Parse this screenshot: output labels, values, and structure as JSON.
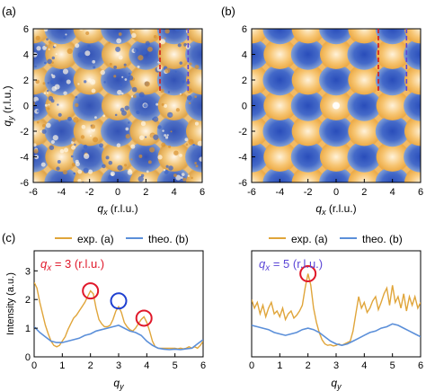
{
  "panels": {
    "a": {
      "tag": "(a)",
      "xlabel_var": "q",
      "xlabel_sub": "x",
      "xlabel_unit": " (r.l.u.)",
      "ylabel_var": "q",
      "ylabel_sub": "y",
      "ylabel_unit": " (r.l.u.)"
    },
    "b": {
      "tag": "(b)",
      "xlabel_var": "q",
      "xlabel_sub": "x",
      "xlabel_unit": " (r.l.u.)"
    },
    "c": {
      "tag": "(c)"
    }
  },
  "annotations": {
    "left_label": "qx = 3 (r.l.u.)",
    "left_label_var": "q",
    "left_label_sub": "x",
    "left_label_rest": " = 3 (r.l.u.)",
    "right_label_var": "q",
    "right_label_sub": "x",
    "right_label_rest": " = 5 (r.l.u.)"
  },
  "legend": {
    "exp_label": "exp. (a)",
    "theo_label": "theo. (b)"
  },
  "colors": {
    "exp": "#e0a53a",
    "theo": "#5b8fd9",
    "map_orange": "#f0b45a",
    "map_blue": "#2f58c4",
    "map_white": "#fff3de",
    "red": "#e0182a",
    "blue_circle": "#1e3fd0",
    "red_dash": "#d21c1c",
    "violet_dash": "#5b46d6"
  },
  "chart_data": [
    {
      "type": "heatmap",
      "panel": "a",
      "x_range": [
        -6,
        6
      ],
      "y_range": [
        -6,
        6
      ],
      "x_ticks": [
        "-6",
        "-4",
        "-2",
        "0",
        "2",
        "4",
        "6"
      ],
      "y_ticks": [
        "-6",
        "-4",
        "-2",
        "0",
        "2",
        "4",
        "6"
      ],
      "xlabel": "qx (r.l.u.)",
      "ylabel": "qy (r.l.u.)",
      "dashed_lines": [
        {
          "qx": 3,
          "qy_range": [
            1,
            6
          ],
          "color": "red"
        },
        {
          "qx": 5,
          "qy_range": [
            1,
            6
          ],
          "color": "violet"
        }
      ]
    },
    {
      "type": "heatmap",
      "panel": "b",
      "x_range": [
        -6,
        6
      ],
      "y_range": [
        -6,
        6
      ],
      "x_ticks": [
        "-6",
        "-4",
        "-2",
        "0",
        "2",
        "4",
        "6"
      ],
      "y_ticks": [
        "-6",
        "-4",
        "-2",
        "0",
        "2",
        "4",
        "6"
      ],
      "xlabel": "qx (r.l.u.)",
      "dashed_lines": [
        {
          "qx": 3,
          "qy_range": [
            1,
            6
          ],
          "color": "red"
        },
        {
          "qx": 5,
          "qy_range": [
            1,
            6
          ],
          "color": "violet"
        }
      ]
    },
    {
      "type": "line",
      "panel": "c-left",
      "x_ticks": [
        "0",
        "1",
        "2",
        "3",
        "4",
        "5",
        "6"
      ],
      "xlim": [
        0,
        6
      ],
      "ylim": [
        0,
        3.7
      ],
      "y_ticks": [
        "0",
        "1",
        "2",
        "3"
      ],
      "ylabel": "Intensity (a.u.)",
      "xlabel": "qy",
      "series": [
        {
          "name": "exp. (a)",
          "x": [
            0,
            0.1,
            0.2,
            0.3,
            0.4,
            0.5,
            0.6,
            0.7,
            0.8,
            0.9,
            1.0,
            1.1,
            1.2,
            1.3,
            1.4,
            1.5,
            1.6,
            1.7,
            1.8,
            1.9,
            2.0,
            2.1,
            2.2,
            2.3,
            2.4,
            2.5,
            2.6,
            2.7,
            2.8,
            2.9,
            3.0,
            3.1,
            3.2,
            3.3,
            3.4,
            3.5,
            3.6,
            3.7,
            3.8,
            3.9,
            4.0,
            4.1,
            4.2,
            4.3,
            4.4,
            4.5,
            4.6,
            4.7,
            4.8,
            4.9,
            5.0,
            5.1,
            5.2,
            5.3,
            5.4,
            5.5,
            5.6,
            5.7,
            5.8,
            5.9,
            6.0
          ],
          "y": [
            2.6,
            2.4,
            1.9,
            1.5,
            1.1,
            0.8,
            0.55,
            0.4,
            0.35,
            0.4,
            0.55,
            0.7,
            0.95,
            1.15,
            1.35,
            1.45,
            1.6,
            1.75,
            1.9,
            2.1,
            2.3,
            2.2,
            1.7,
            1.3,
            1.15,
            1.05,
            1.05,
            1.1,
            1.3,
            1.6,
            1.75,
            1.55,
            1.2,
            1.05,
            0.95,
            0.9,
            1.0,
            1.15,
            1.3,
            1.4,
            1.2,
            0.9,
            0.55,
            0.35,
            0.3,
            0.3,
            0.3,
            0.3,
            0.3,
            0.3,
            0.3,
            0.28,
            0.3,
            0.28,
            0.3,
            0.35,
            0.3,
            0.35,
            0.3,
            0.4,
            0.55
          ]
        },
        {
          "name": "theo. (b)",
          "x": [
            0,
            0.2,
            0.4,
            0.6,
            0.8,
            1.0,
            1.2,
            1.4,
            1.6,
            1.8,
            2.0,
            2.2,
            2.4,
            2.6,
            2.8,
            3.0,
            3.2,
            3.4,
            3.6,
            3.8,
            4.0,
            4.2,
            4.4,
            4.6,
            4.8,
            5.0,
            5.2,
            5.4,
            5.6,
            5.8,
            6.0
          ],
          "y": [
            1.05,
            0.85,
            0.7,
            0.55,
            0.5,
            0.5,
            0.55,
            0.6,
            0.65,
            0.75,
            0.8,
            0.9,
            0.95,
            1.0,
            1.05,
            1.1,
            1.0,
            0.9,
            0.85,
            0.75,
            0.55,
            0.4,
            0.3,
            0.27,
            0.25,
            0.27,
            0.25,
            0.28,
            0.3,
            0.45,
            0.6
          ]
        }
      ],
      "markers": [
        {
          "shape": "circle",
          "color": "red",
          "x": 2.0,
          "y": 2.3
        },
        {
          "shape": "circle",
          "color": "blue",
          "x": 3.0,
          "y": 1.95
        },
        {
          "shape": "circle",
          "color": "red",
          "x": 3.9,
          "y": 1.35
        }
      ]
    },
    {
      "type": "line",
      "panel": "c-right",
      "x_ticks": [
        "0",
        "1",
        "2",
        "3",
        "4",
        "5",
        "6"
      ],
      "xlim": [
        0,
        6
      ],
      "ylim": [
        0,
        3.7
      ],
      "xlabel": "qy",
      "series": [
        {
          "name": "exp. (a)",
          "x": [
            0,
            0.1,
            0.2,
            0.3,
            0.4,
            0.5,
            0.6,
            0.7,
            0.8,
            0.9,
            1.0,
            1.1,
            1.2,
            1.3,
            1.4,
            1.5,
            1.6,
            1.7,
            1.8,
            1.9,
            2.0,
            2.1,
            2.2,
            2.3,
            2.4,
            2.5,
            2.6,
            2.7,
            2.8,
            2.9,
            3.0,
            3.1,
            3.2,
            3.3,
            3.4,
            3.5,
            3.6,
            3.7,
            3.8,
            3.9,
            4.0,
            4.1,
            4.2,
            4.3,
            4.4,
            4.5,
            4.6,
            4.7,
            4.8,
            4.9,
            5.0,
            5.1,
            5.2,
            5.3,
            5.4,
            5.5,
            5.6,
            5.7,
            5.8,
            5.9,
            6.0
          ],
          "y": [
            2.0,
            1.7,
            1.9,
            1.5,
            1.8,
            1.4,
            1.7,
            1.9,
            1.5,
            1.6,
            1.4,
            1.7,
            1.3,
            1.5,
            1.6,
            1.35,
            1.45,
            1.6,
            1.8,
            2.4,
            2.9,
            2.5,
            1.7,
            1.2,
            0.85,
            0.6,
            0.45,
            0.4,
            0.42,
            0.38,
            0.4,
            0.45,
            0.4,
            0.45,
            0.5,
            0.55,
            0.9,
            1.5,
            2.1,
            1.7,
            1.9,
            1.55,
            1.7,
            1.95,
            2.1,
            1.65,
            1.9,
            2.2,
            2.4,
            1.8,
            2.5,
            1.9,
            2.1,
            1.7,
            2.2,
            1.6,
            2.1,
            1.8,
            2.1,
            1.7,
            1.9
          ]
        },
        {
          "name": "theo. (b)",
          "x": [
            0,
            0.2,
            0.4,
            0.6,
            0.8,
            1.0,
            1.2,
            1.4,
            1.6,
            1.8,
            2.0,
            2.2,
            2.4,
            2.6,
            2.8,
            3.0,
            3.2,
            3.4,
            3.6,
            3.8,
            4.0,
            4.2,
            4.4,
            4.6,
            4.8,
            5.0,
            5.2,
            5.4,
            5.6,
            5.8,
            6.0
          ],
          "y": [
            1.1,
            1.05,
            1.0,
            0.95,
            0.85,
            0.8,
            0.75,
            0.8,
            0.85,
            0.95,
            1.0,
            0.95,
            0.85,
            0.7,
            0.55,
            0.45,
            0.4,
            0.45,
            0.55,
            0.65,
            0.75,
            0.85,
            0.9,
            1.0,
            1.05,
            1.15,
            1.1,
            1.0,
            0.9,
            0.8,
            0.7
          ]
        }
      ],
      "markers": [
        {
          "shape": "circle",
          "color": "red",
          "x": 2.0,
          "y": 2.9
        }
      ]
    }
  ]
}
